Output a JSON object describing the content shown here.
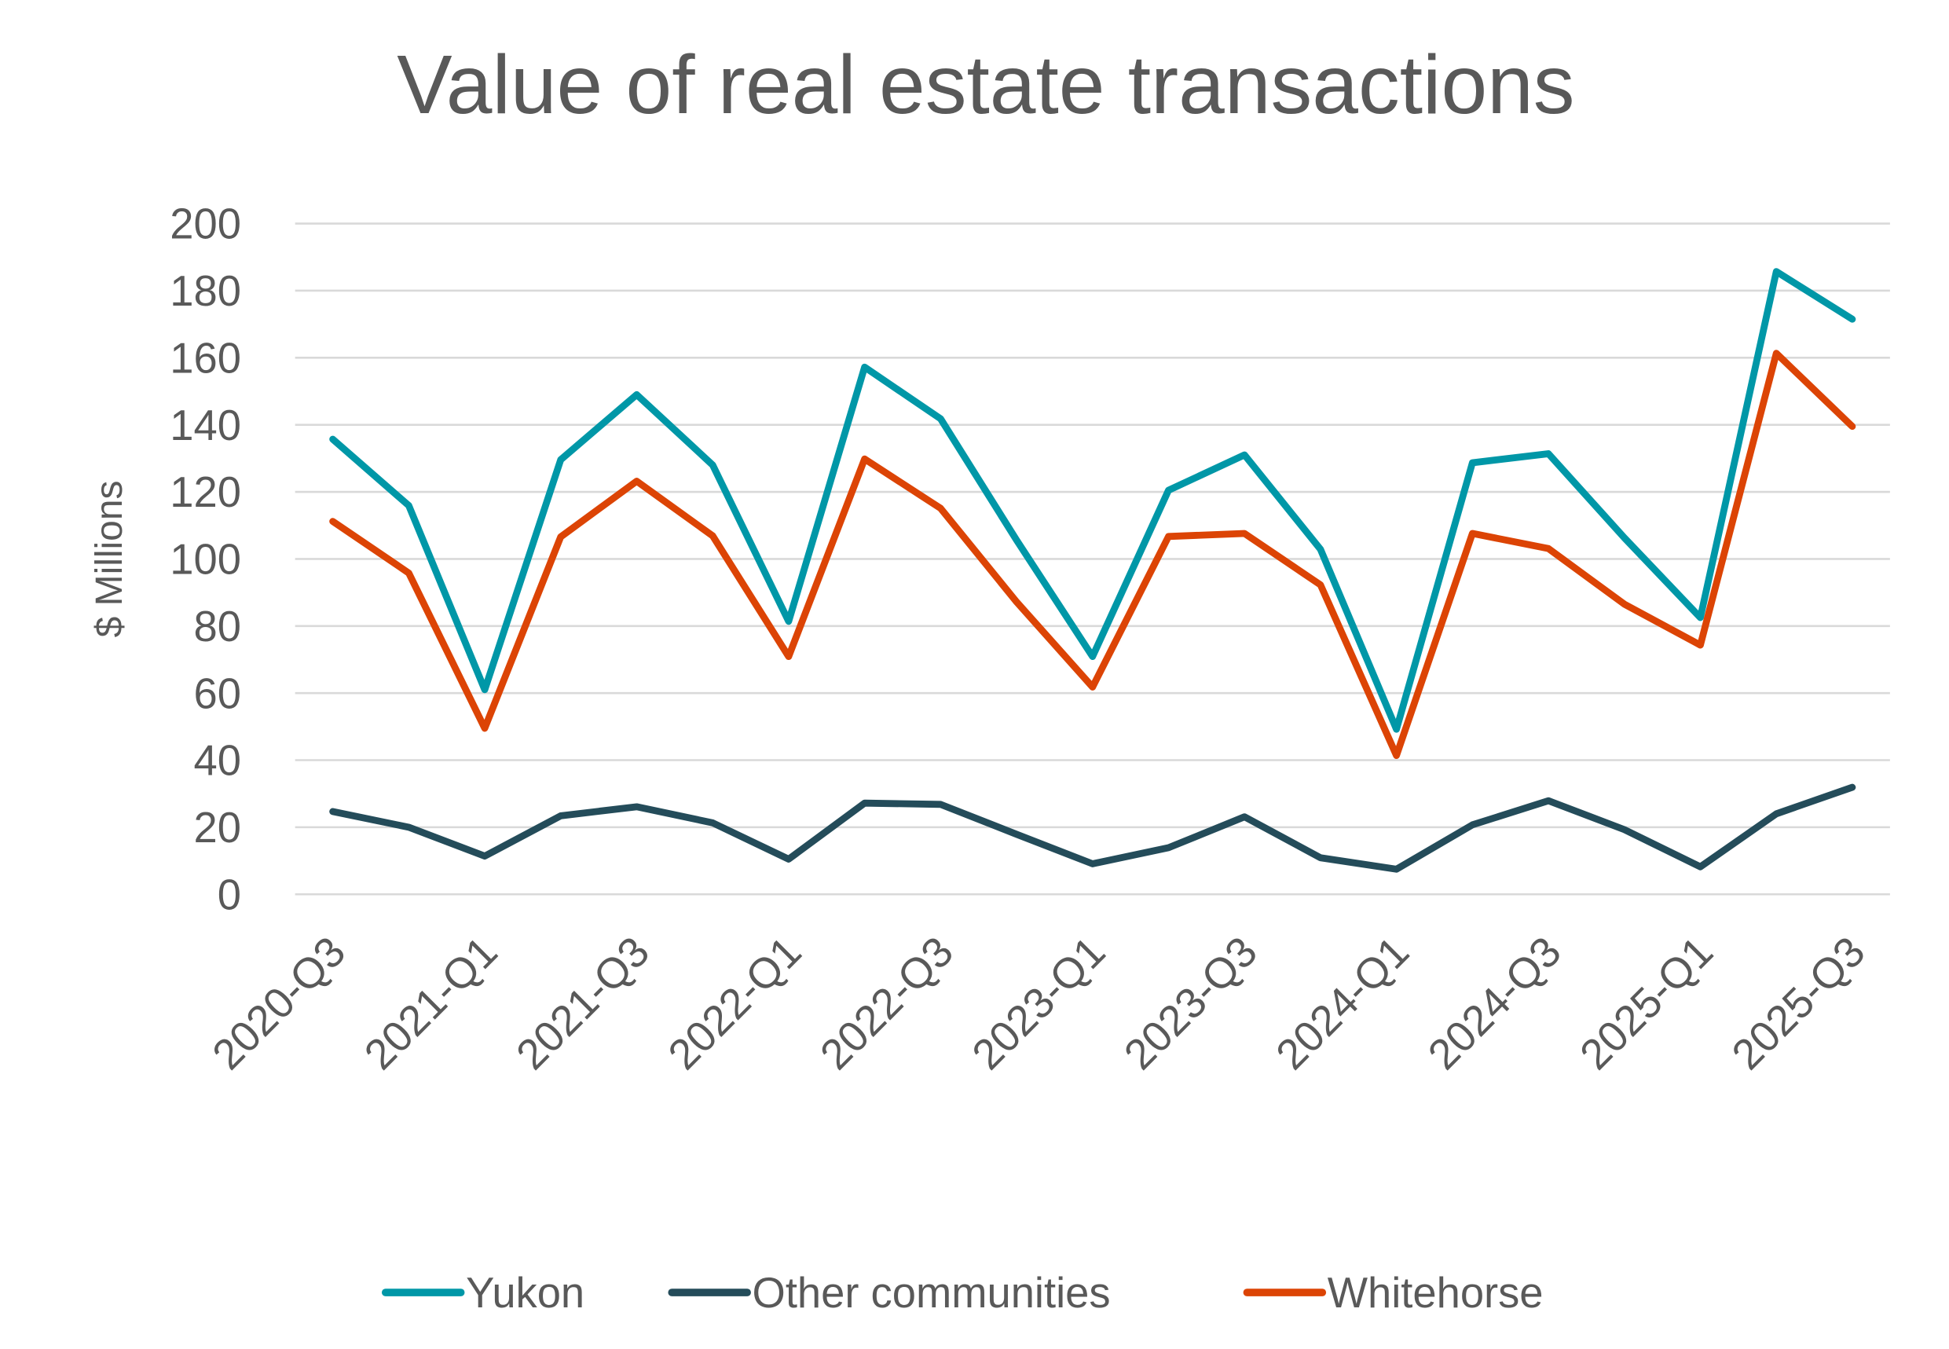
{
  "chart_data": {
    "type": "line",
    "title": "Value of real estate transactions",
    "xlabel": "",
    "ylabel": "$ Millions",
    "ylim": [
      0,
      200
    ],
    "yticks": [
      0,
      20,
      40,
      60,
      80,
      100,
      120,
      140,
      160,
      180,
      200
    ],
    "grid": true,
    "legend_position": "bottom",
    "x": [
      "2020-Q3",
      "2020-Q4",
      "2021-Q1",
      "2021-Q2",
      "2021-Q3",
      "2021-Q4",
      "2022-Q1",
      "2022-Q2",
      "2022-Q3",
      "2022-Q4",
      "2023-Q1",
      "2023-Q2",
      "2023-Q3",
      "2023-Q4",
      "2024-Q1",
      "2024-Q2",
      "2024-Q3",
      "2024-Q4",
      "2025-Q1",
      "2025-Q2",
      "2025-Q3"
    ],
    "xtick_labels": [
      "2020-Q3",
      "2021-Q1",
      "2021-Q3",
      "2022-Q1",
      "2022-Q3",
      "2023-Q1",
      "2023-Q3",
      "2024-Q1",
      "2024-Q3",
      "2025-Q1",
      "2025-Q3"
    ],
    "series": [
      {
        "name": "Yukon",
        "color": "#0097A7",
        "values": [
          135.7,
          115.9,
          61.0,
          129.6,
          149.0,
          128.0,
          81.4,
          157.2,
          141.8,
          105.6,
          70.9,
          120.5,
          131.0,
          102.9,
          49.2,
          128.7,
          131.4,
          106.3,
          82.5,
          185.7,
          171.5
        ]
      },
      {
        "name": "Other communities",
        "color": "#244C5A",
        "values": [
          24.7,
          20.0,
          11.4,
          23.4,
          26.1,
          21.3,
          10.5,
          27.2,
          26.8,
          17.9,
          9.1,
          13.9,
          23.1,
          10.9,
          7.5,
          20.7,
          27.9,
          19.3,
          8.2,
          24.0,
          31.9
        ]
      },
      {
        "name": "Whitehorse",
        "color": "#DC4405",
        "values": [
          111.2,
          95.8,
          49.5,
          106.6,
          123.2,
          106.9,
          70.9,
          129.8,
          115.1,
          87.2,
          61.8,
          106.7,
          107.6,
          92.3,
          41.4,
          107.6,
          103.1,
          86.5,
          74.3,
          161.3,
          139.5
        ]
      }
    ]
  },
  "legend": {
    "items": [
      {
        "label": "Yukon",
        "color": "#0097A7"
      },
      {
        "label": "Other communities",
        "color": "#244C5A"
      },
      {
        "label": "Whitehorse",
        "color": "#DC4405"
      }
    ]
  }
}
